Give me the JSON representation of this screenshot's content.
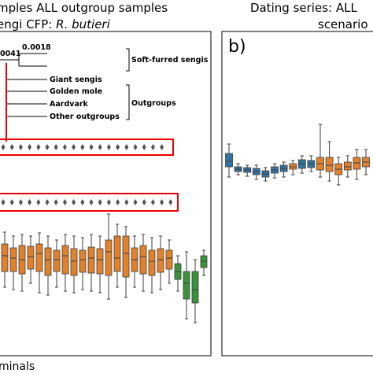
{
  "chart_data": [
    {
      "type": "box",
      "title": "mples ALL outgroup samples",
      "subtitle": [
        "engi CFP: ",
        "R. butieri"
      ],
      "annotations": [
        "0041",
        "0.0018",
        "Soft-furred sengis",
        "Giant sengis",
        "Golden mole",
        "Aardvark",
        "Other outgroups",
        "Outgroups"
      ],
      "xlabel": "minals",
      "ylim": [
        0,
        412
      ],
      "boxes": [
        {
          "color": "#e1812c",
          "values": [
            87,
            107,
            127,
            142,
            157
          ]
        },
        {
          "color": "#e1812c",
          "values": [
            84,
            107,
            124,
            137,
            152
          ]
        },
        {
          "color": "#e1812c",
          "values": [
            82,
            104,
            122,
            140,
            154
          ]
        },
        {
          "color": "#e1812c",
          "values": [
            92,
            110,
            126,
            139,
            152
          ]
        },
        {
          "color": "#e1812c",
          "values": [
            80,
            107,
            130,
            142,
            156
          ]
        },
        {
          "color": "#e1812c",
          "values": [
            77,
            102,
            122,
            137,
            152
          ]
        },
        {
          "color": "#e1812c",
          "values": [
            87,
            107,
            122,
            134,
            147
          ]
        },
        {
          "color": "#e1812c",
          "values": [
            82,
            104,
            127,
            140,
            154
          ]
        },
        {
          "color": "#e1812c",
          "values": [
            80,
            102,
            120,
            136,
            152
          ]
        },
        {
          "color": "#e1812c",
          "values": [
            84,
            106,
            122,
            134,
            150
          ]
        },
        {
          "color": "#e1812c",
          "values": [
            82,
            105,
            124,
            138,
            154
          ]
        },
        {
          "color": "#e1812c",
          "values": [
            80,
            104,
            122,
            136,
            152
          ]
        },
        {
          "color": "#e1812c",
          "values": [
            72,
            102,
            132,
            147,
            180
          ]
        },
        {
          "color": "#e1812c",
          "values": [
            87,
            107,
            124,
            152,
            167
          ]
        },
        {
          "color": "#e1812c",
          "values": [
            74,
            100,
            130,
            152,
            164
          ]
        },
        {
          "color": "#e1812c",
          "values": [
            87,
            107,
            122,
            137,
            152
          ]
        },
        {
          "color": "#e1812c",
          "values": [
            82,
            104,
            126,
            140,
            154
          ]
        },
        {
          "color": "#e1812c",
          "values": [
            80,
            102,
            120,
            134,
            150
          ]
        },
        {
          "color": "#e1812c",
          "values": [
            84,
            106,
            122,
            136,
            152
          ]
        },
        {
          "color": "#e1812c",
          "values": [
            92,
            110,
            124,
            134,
            147
          ]
        },
        {
          "color": "#3a923a",
          "values": [
            82,
            97,
            107,
            117,
            127
          ]
        },
        {
          "color": "#3a923a",
          "values": [
            47,
            72,
            92,
            107,
            132
          ]
        },
        {
          "color": "#3a923a",
          "values": [
            42,
            67,
            84,
            107,
            122
          ]
        },
        {
          "color": "#3a923a",
          "values": [
            102,
            112,
            120,
            127,
            134
          ]
        }
      ]
    },
    {
      "type": "box",
      "title": "Dating series: ALL",
      "subtitle": [
        "scenario"
      ],
      "panel_label": "b)",
      "ylim": [
        0,
        412
      ],
      "boxes": [
        {
          "color": "#3274a1",
          "values": [
            227,
            240,
            247,
            257,
            269
          ]
        },
        {
          "color": "#3274a1",
          "values": [
            230,
            234,
            237,
            240,
            244
          ]
        },
        {
          "color": "#3274a1",
          "values": [
            228,
            233,
            236,
            239,
            242
          ]
        },
        {
          "color": "#3274a1",
          "values": [
            224,
            230,
            234,
            238,
            242
          ]
        },
        {
          "color": "#3274a1",
          "values": [
            222,
            227,
            231,
            235,
            239
          ]
        },
        {
          "color": "#3274a1",
          "values": [
            226,
            232,
            236,
            240,
            244
          ]
        },
        {
          "color": "#3274a1",
          "values": [
            227,
            234,
            238,
            242,
            246
          ]
        },
        {
          "color": "#e1812c",
          "values": [
            230,
            237,
            240,
            244,
            248
          ]
        },
        {
          "color": "#3274a1",
          "values": [
            232,
            238,
            244,
            249,
            254
          ]
        },
        {
          "color": "#3274a1",
          "values": [
            234,
            239,
            244,
            248,
            254
          ]
        },
        {
          "color": "#e1812c",
          "values": [
            227,
            236,
            244,
            252,
            294
          ]
        },
        {
          "color": "#e1812c",
          "values": [
            222,
            234,
            242,
            252,
            272
          ]
        },
        {
          "color": "#e1812c",
          "values": [
            217,
            230,
            237,
            244,
            252
          ]
        },
        {
          "color": "#e1812c",
          "values": [
            227,
            236,
            240,
            246,
            254
          ]
        },
        {
          "color": "#e1812c",
          "values": [
            224,
            237,
            245,
            252,
            262
          ]
        },
        {
          "color": "#e1812c",
          "values": [
            230,
            240,
            246,
            252,
            262
          ]
        }
      ]
    }
  ]
}
